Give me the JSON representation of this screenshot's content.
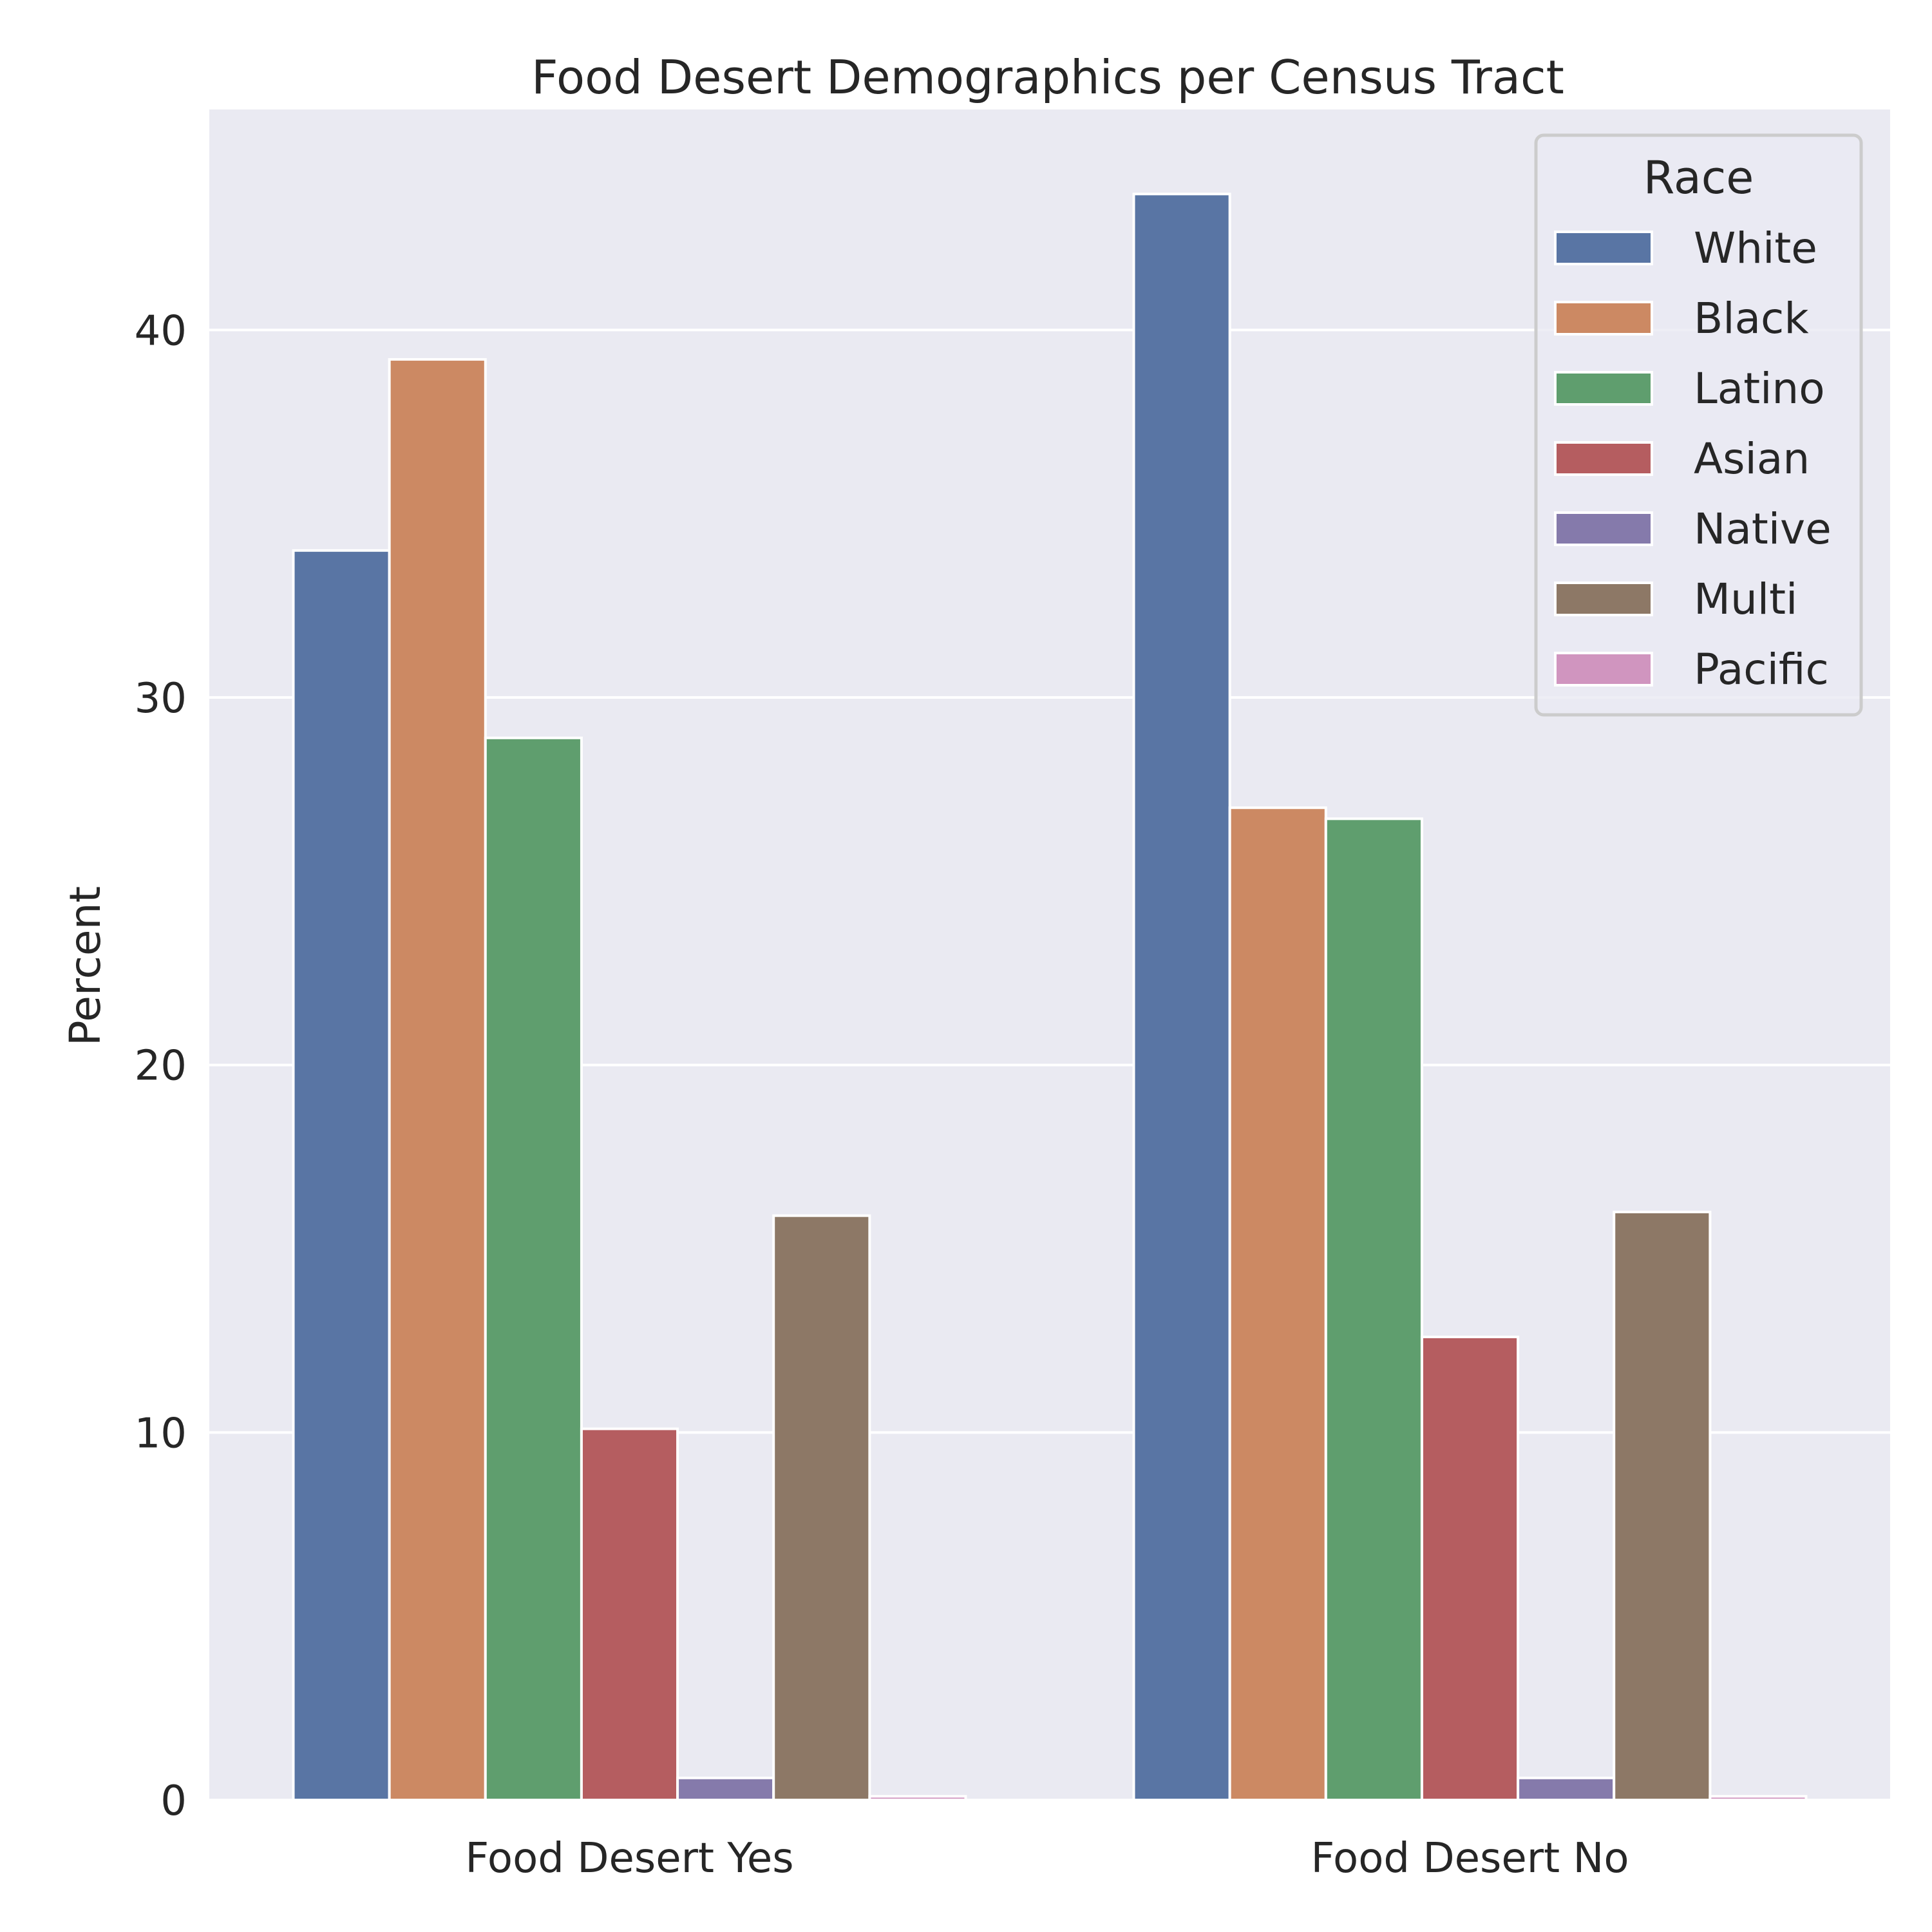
{
  "chart_data": {
    "type": "bar",
    "title": "Food Desert Demographics per Census Tract",
    "xlabel": "",
    "ylabel": "Percent",
    "categories": [
      "Food Desert Yes",
      "Food Desert No"
    ],
    "ylim": [
      0,
      46
    ],
    "yticks": [
      "0",
      "10",
      "20",
      "30",
      "40"
    ],
    "grid": true,
    "legend": {
      "title": "Race",
      "placement": "top-right"
    },
    "series": [
      {
        "name": "White",
        "color": "#5975a4",
        "values": [
          34.0,
          43.7
        ]
      },
      {
        "name": "Black",
        "color": "#cc8963",
        "values": [
          39.2,
          27.0
        ]
      },
      {
        "name": "Latino",
        "color": "#5f9e6e",
        "values": [
          28.9,
          26.7
        ]
      },
      {
        "name": "Asian",
        "color": "#b55d60",
        "values": [
          10.1,
          12.6
        ]
      },
      {
        "name": "Native",
        "color": "#857aab",
        "values": [
          0.6,
          0.6
        ]
      },
      {
        "name": "Multi",
        "color": "#8d7866",
        "values": [
          15.9,
          16.0
        ]
      },
      {
        "name": "Pacific",
        "color": "#d095bf",
        "values": [
          0.1,
          0.1
        ]
      }
    ],
    "colors": {
      "plot_background": "#eaeaf2",
      "grid": "#ffffff",
      "text": "#262626"
    }
  }
}
